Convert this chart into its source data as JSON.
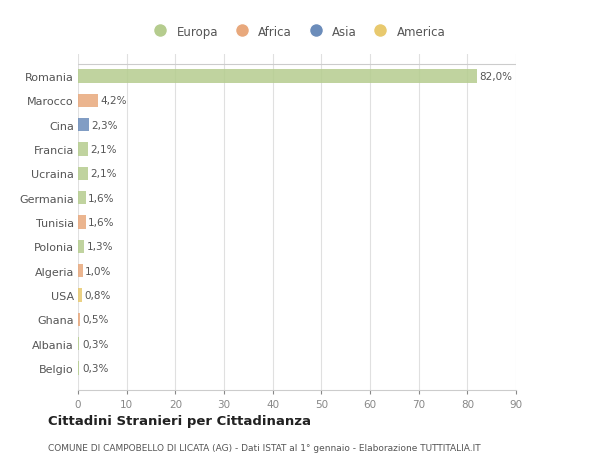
{
  "countries": [
    "Romania",
    "Marocco",
    "Cina",
    "Francia",
    "Ucraina",
    "Germania",
    "Tunisia",
    "Polonia",
    "Algeria",
    "USA",
    "Ghana",
    "Albania",
    "Belgio"
  ],
  "values": [
    82.0,
    4.2,
    2.3,
    2.1,
    2.1,
    1.6,
    1.6,
    1.3,
    1.0,
    0.8,
    0.5,
    0.3,
    0.3
  ],
  "labels": [
    "82,0%",
    "4,2%",
    "2,3%",
    "2,1%",
    "2,1%",
    "1,6%",
    "1,6%",
    "1,3%",
    "1,0%",
    "0,8%",
    "0,5%",
    "0,3%",
    "0,3%"
  ],
  "colors": [
    "#b5cc8e",
    "#e8a87c",
    "#6b8cba",
    "#b5cc8e",
    "#b5cc8e",
    "#b5cc8e",
    "#e8a87c",
    "#b5cc8e",
    "#e8a87c",
    "#e8c96e",
    "#e8a87c",
    "#b5cc8e",
    "#b5cc8e"
  ],
  "legend_labels": [
    "Europa",
    "Africa",
    "Asia",
    "America"
  ],
  "legend_colors": [
    "#b5cc8e",
    "#e8a87c",
    "#6b8cba",
    "#e8c96e"
  ],
  "title": "Cittadini Stranieri per Cittadinanza",
  "subtitle": "COMUNE DI CAMPOBELLO DI LICATA (AG) - Dati ISTAT al 1° gennaio - Elaborazione TUTTITALIA.IT",
  "xlim": [
    0,
    90
  ],
  "xticks": [
    0,
    10,
    20,
    30,
    40,
    50,
    60,
    70,
    80,
    90
  ],
  "bg_color": "#ffffff",
  "grid_color": "#e0e0e0",
  "bar_height": 0.55
}
